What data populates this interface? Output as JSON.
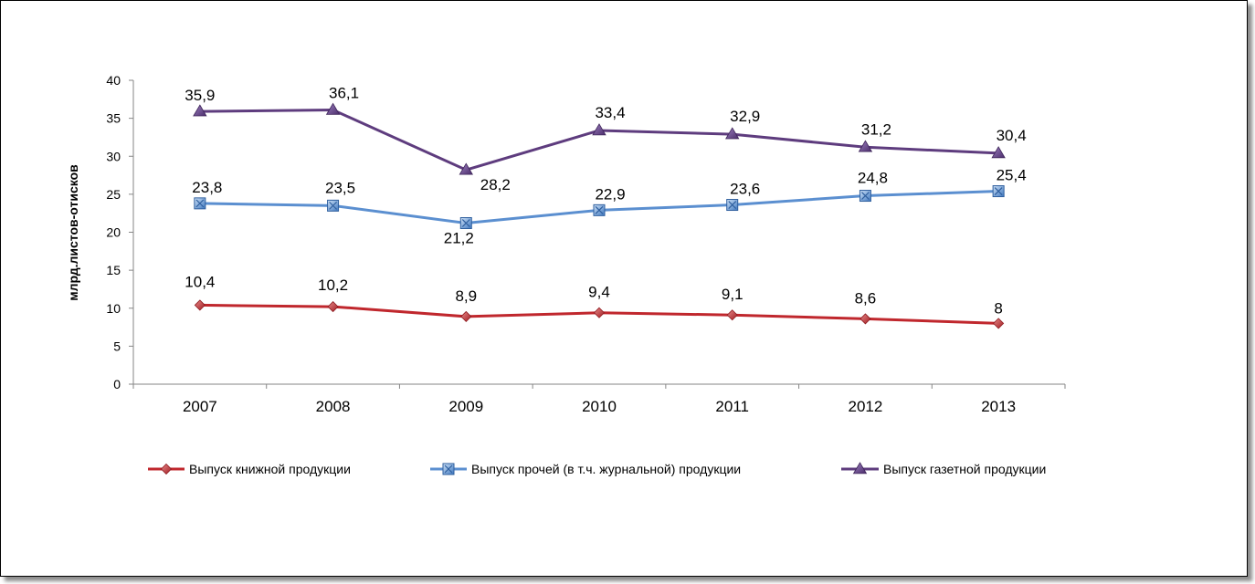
{
  "chart_data": {
    "type": "line",
    "title": "",
    "xlabel": "",
    "ylabel": "млрд.листов-отисков",
    "ylim": [
      0,
      40
    ],
    "yticks": [
      0,
      5,
      10,
      15,
      20,
      25,
      30,
      35,
      40
    ],
    "categories": [
      "2007",
      "2008",
      "2009",
      "2010",
      "2011",
      "2012",
      "2013"
    ],
    "grid": false,
    "legend_position": "bottom",
    "series": [
      {
        "name": "Выпуск книжной продукции",
        "values": [
          10.4,
          10.2,
          8.9,
          9.4,
          9.1,
          8.6,
          8
        ],
        "labels": [
          "10,4",
          "10,2",
          "8,9",
          "9,4",
          "9,1",
          "8,6",
          "8"
        ],
        "color": "#C0272D",
        "marker": "diamond"
      },
      {
        "name": "Выпуск прочей (в т.ч. журнальной) продукции",
        "values": [
          23.8,
          23.5,
          21.2,
          22.9,
          23.6,
          24.8,
          25.4
        ],
        "labels": [
          "23,8",
          "23,5",
          "21,2",
          "22,9",
          "23,6",
          "24,8",
          "25,4"
        ],
        "color": "#5B8FD0",
        "marker": "square"
      },
      {
        "name": "Выпуск  газетной продукции",
        "values": [
          35.9,
          36.1,
          28.2,
          33.4,
          32.9,
          31.2,
          30.4
        ],
        "labels": [
          "35,9",
          "36,1",
          "28,2",
          "33,4",
          "32,9",
          "31,2",
          "30,4"
        ],
        "color": "#5E3C7E",
        "marker": "triangle"
      }
    ]
  }
}
